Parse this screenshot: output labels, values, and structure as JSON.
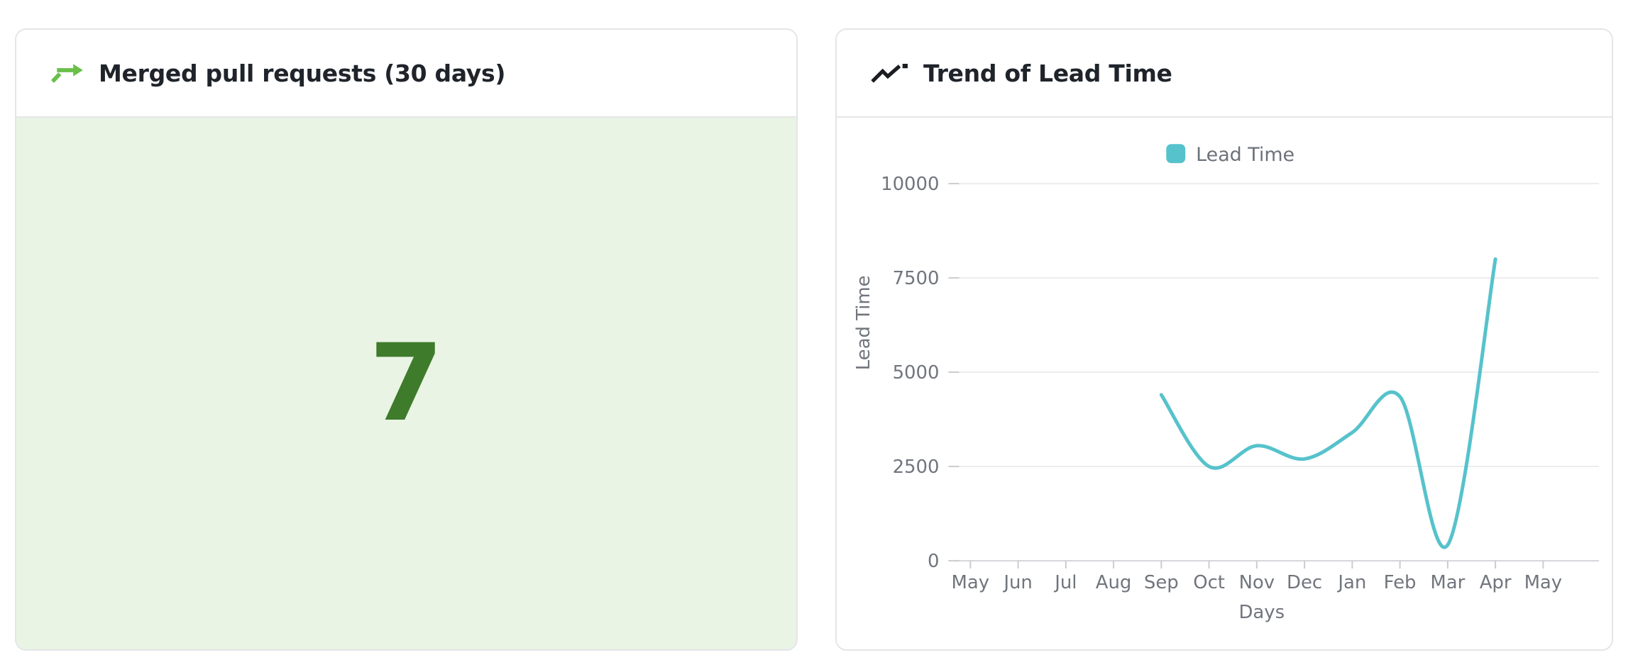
{
  "page": {
    "background": "#ffffff"
  },
  "cards": {
    "merged_prs": {
      "title": "Merged pull requests (30 days)",
      "icon": "git-merge-arrow-icon",
      "icon_color": "#6abf4b",
      "value": "7",
      "value_color": "#3e7b2b",
      "panel_bg": "#e9f4e4"
    },
    "lead_time_trend": {
      "title": "Trend of Lead Time",
      "icon": "trending-up-icon",
      "icon_color": "#1b1d21"
    }
  },
  "chart_data": {
    "type": "line",
    "title": "Trend of Lead Time",
    "xlabel": "Days",
    "ylabel": "Lead Time",
    "x_categories": [
      "May",
      "Jun",
      "Jul",
      "Aug",
      "Sep",
      "Oct",
      "Nov",
      "Dec",
      "Jan",
      "Feb",
      "Mar",
      "Apr",
      "May"
    ],
    "yticks": [
      0,
      2500,
      5000,
      7500,
      10000
    ],
    "ylim": [
      0,
      10000
    ],
    "grid": true,
    "legend": {
      "position": "top-center",
      "items": [
        "Lead Time"
      ]
    },
    "series": [
      {
        "name": "Lead Time",
        "color": "#56c2cc",
        "smooth": true,
        "points": [
          {
            "x": "Sep",
            "y": 4400
          },
          {
            "x": "Oct",
            "y": 2500
          },
          {
            "x": "Nov",
            "y": 3050
          },
          {
            "x": "Dec",
            "y": 2700
          },
          {
            "x": "Jan",
            "y": 3400
          },
          {
            "x": "Feb",
            "y": 4350
          },
          {
            "x": "Mar",
            "y": 420
          },
          {
            "x": "Apr",
            "y": 8000
          }
        ]
      }
    ],
    "colors": {
      "gridline": "#e8e8e8",
      "axis_line": "#d4d6d9",
      "axis_text": "#71757d",
      "legend_text": "#6d727a"
    }
  }
}
